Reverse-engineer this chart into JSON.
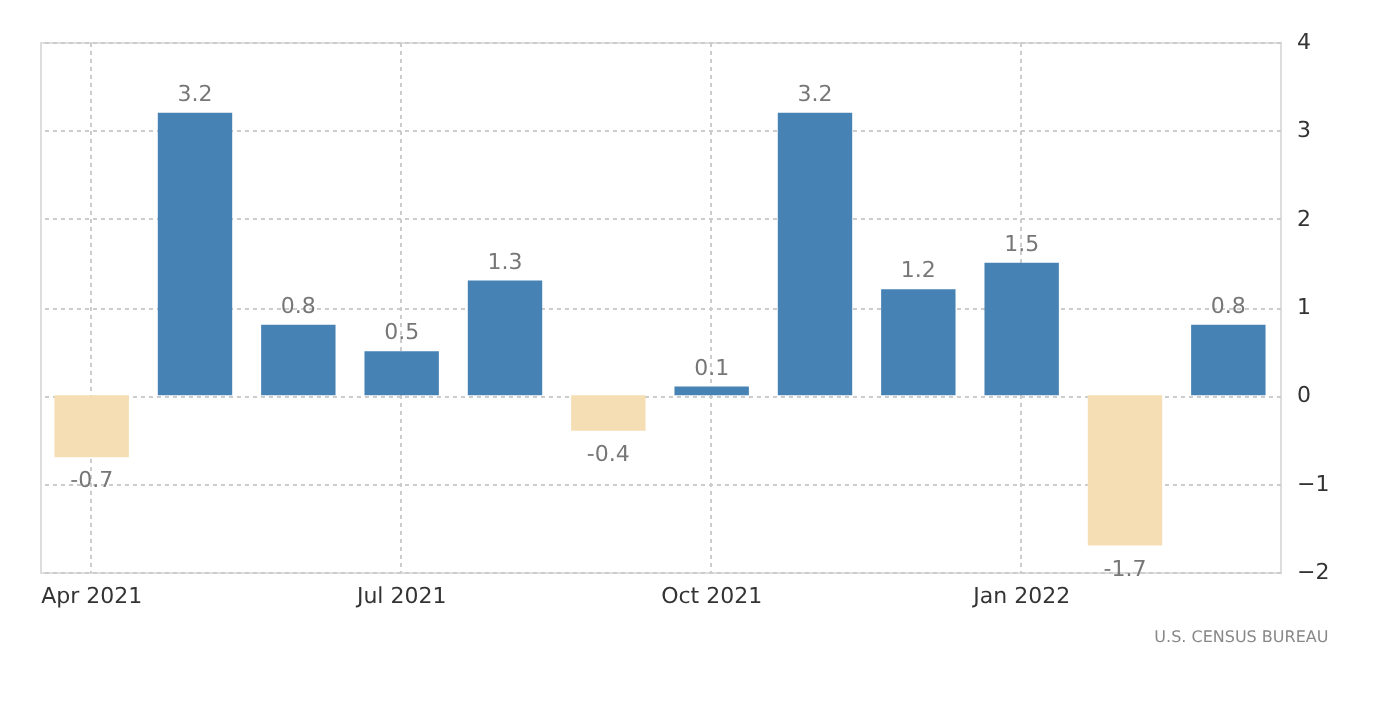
{
  "chart_data": {
    "type": "bar",
    "categories": [
      "Apr 2021",
      null,
      null,
      "Jul 2021",
      null,
      null,
      "Oct 2021",
      null,
      null,
      "Jan 2022",
      null,
      null
    ],
    "values": [
      -0.7,
      3.2,
      0.8,
      0.5,
      1.3,
      -0.4,
      0.1,
      3.2,
      1.2,
      1.5,
      -1.7,
      0.8
    ],
    "colors": [
      "#f5deb3",
      "#4682b4",
      "#4682b4",
      "#4682b4",
      "#4682b4",
      "#f5deb3",
      "#4682b4",
      "#4682b4",
      "#4682b4",
      "#4682b4",
      "#f5deb3",
      "#4682b4"
    ],
    "ylim": [
      -2,
      4
    ],
    "yticks": [
      -2,
      -1,
      0,
      1,
      2,
      3,
      4
    ],
    "grid": true,
    "data_labels": true,
    "annotations": [
      "U.S. CENSUS BUREAU"
    ]
  }
}
